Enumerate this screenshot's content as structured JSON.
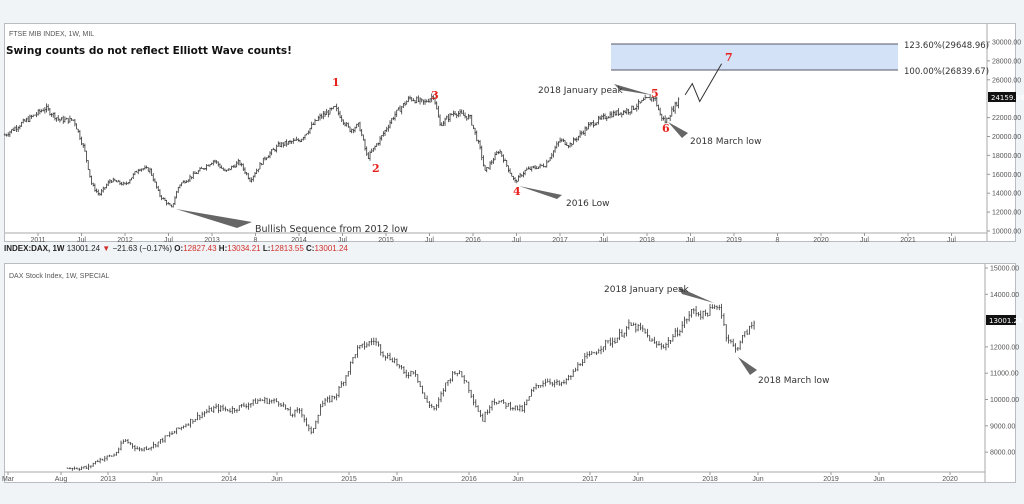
{
  "top_chart": {
    "title": "FTSE MIB INDEX, 1W, MIL",
    "headline": "Swing counts do not reflect Elliott Wave counts!",
    "last_price": "24159.34",
    "price_ticks": [
      "30000.00",
      "28000.00",
      "26000.00",
      "22000.00",
      "20000.00",
      "18000.00",
      "16000.00",
      "14000.00",
      "12000.00",
      "10000.00"
    ],
    "date_ticks": [
      "2011",
      "Jul",
      "2012",
      "Jul",
      "2013",
      "8",
      "2014",
      "Jul",
      "2015",
      "Jul",
      "2016",
      "Jul",
      "2017",
      "Jul",
      "2018",
      "Jul",
      "2019",
      "8",
      "2020",
      "Jul",
      "2021",
      "Jul"
    ],
    "fib_labels": [
      "123.60%(29648.96)",
      "100.00%(26839.67)"
    ],
    "fib_zone_color": "#d3e2f7",
    "wave_labels": [
      "1",
      "2",
      "3",
      "4",
      "5",
      "6",
      "7"
    ],
    "annotations": {
      "bullish": "Bullish Sequence from 2012 low",
      "jan_peak": "2018 January peak",
      "march_low": "2018 March low",
      "low_2016": "2016 Low"
    }
  },
  "legend": {
    "symbol": "INDEX:DAX, 1W",
    "price": "13001.24",
    "change": "−21.63 (−0.17%)",
    "o_label": "O:",
    "o": "12827.43",
    "h_label": "H:",
    "h": "13034.21",
    "l_label": "L:",
    "l": "12813.55",
    "c_label": "C:",
    "c": "13001.24",
    "down_icon": "triangle-down-icon",
    "value_color": "#d0302b"
  },
  "bottom_chart": {
    "title": "DAX Stock Index, 1W, SPECIAL",
    "last_price": "13001.24",
    "price_ticks": [
      "15000.00",
      "14000.00",
      "12000.00",
      "11000.00",
      "10000.00",
      "9000.00",
      "8000.00"
    ],
    "date_ticks": [
      "Mar",
      "Aug",
      "2013",
      "Jun",
      "2014",
      "Jun",
      "2015",
      "Jun",
      "2016",
      "Jun",
      "2017",
      "Jun",
      "2018",
      "Jun",
      "2019",
      "Jun",
      "2020"
    ],
    "annotations": {
      "jan_peak": "2018 January peak",
      "march_low": "2018 March low"
    }
  },
  "chart_data": [
    {
      "type": "ohlc-bar",
      "title": "FTSE MIB INDEX, 1W, MIL",
      "ylim": [
        10000,
        30000
      ],
      "fib_levels": [
        {
          "label": "123.60%",
          "value": 29648.96
        },
        {
          "label": "100.00%",
          "value": 26839.67
        }
      ],
      "path": [
        [
          "2010-08-15",
          20160
        ],
        [
          "2010-10-15",
          21220
        ],
        [
          "2011-02-01",
          23020
        ],
        [
          "2011-04-01",
          21750
        ],
        [
          "2011-06-01",
          21750
        ],
        [
          "2011-07-15",
          18570
        ],
        [
          "2011-08-15",
          14870
        ],
        [
          "2011-09-15",
          13810
        ],
        [
          "2011-11-01",
          15400
        ],
        [
          "2012-01-01",
          14870
        ],
        [
          "2012-03-01",
          16670
        ],
        [
          "2012-04-15",
          16450
        ],
        [
          "2012-05-25",
          13810
        ],
        [
          "2012-07-15",
          12430
        ],
        [
          "2012-08-15",
          14870
        ],
        [
          "2012-10-15",
          15930
        ],
        [
          "2013-01-10",
          17510
        ],
        [
          "2013-02-25",
          16240
        ],
        [
          "2013-04-25",
          17300
        ],
        [
          "2013-06-10",
          15400
        ],
        [
          "2013-08-10",
          17720
        ],
        [
          "2013-10-10",
          19100
        ],
        [
          "2014-01-05",
          19630
        ],
        [
          "2014-03-25",
          21960
        ],
        [
          "2014-06-01",
          23020
        ],
        [
          "2014-08-01",
          20690
        ],
        [
          "2014-09-10",
          21220
        ],
        [
          "2014-10-15",
          17720
        ],
        [
          "2014-12-05",
          19630
        ],
        [
          "2015-02-05",
          22280
        ],
        [
          "2015-04-10",
          24070
        ],
        [
          "2015-06-10",
          23540
        ],
        [
          "2015-07-20",
          24390
        ],
        [
          "2015-08-15",
          21220
        ],
        [
          "2015-10-15",
          22590
        ],
        [
          "2015-12-20",
          21960
        ],
        [
          "2016-02-01",
          18570
        ],
        [
          "2016-02-20",
          16240
        ],
        [
          "2016-04-20",
          18570
        ],
        [
          "2016-06-25",
          15190
        ],
        [
          "2016-08-10",
          16450
        ],
        [
          "2016-10-30",
          16980
        ],
        [
          "2017-01-01",
          19630
        ],
        [
          "2017-02-10",
          19100
        ],
        [
          "2017-05-05",
          21220
        ],
        [
          "2017-07-25",
          22280
        ],
        [
          "2017-10-20",
          22800
        ],
        [
          "2017-12-25",
          23860
        ],
        [
          "2018-02-01",
          24180
        ],
        [
          "2018-02-25",
          22280
        ],
        [
          "2018-03-20",
          21530
        ],
        [
          "2018-04-05",
          22280
        ],
        [
          "2018-05-20",
          24160
        ]
      ],
      "projection": [
        [
          "2018-06-10",
          24400
        ],
        [
          "2018-07-10",
          25600
        ],
        [
          "2018-08-10",
          23700
        ],
        [
          "2018-11-10",
          27700
        ]
      ]
    },
    {
      "type": "ohlc-bar",
      "title": "DAX Stock Index, 1W, SPECIAL",
      "ylim": [
        7500,
        15000
      ],
      "path": [
        [
          "2012-09-01",
          7400
        ],
        [
          "2012-11-01",
          7400
        ],
        [
          "2012-12-01",
          7700
        ],
        [
          "2013-01-20",
          7890
        ],
        [
          "2013-02-20",
          8460
        ],
        [
          "2013-04-05",
          8080
        ],
        [
          "2013-05-20",
          8270
        ],
        [
          "2013-07-05",
          8650
        ],
        [
          "2013-08-20",
          9030
        ],
        [
          "2013-10-05",
          9410
        ],
        [
          "2013-11-20",
          9680
        ],
        [
          "2014-01-05",
          9600
        ],
        [
          "2014-02-20",
          9790
        ],
        [
          "2014-04-05",
          9980
        ],
        [
          "2014-06-05",
          9900
        ],
        [
          "2014-07-05",
          9410
        ],
        [
          "2014-08-05",
          9600
        ],
        [
          "2014-09-05",
          8650
        ],
        [
          "2014-10-05",
          9790
        ],
        [
          "2014-11-20",
          10170
        ],
        [
          "2014-12-20",
          10930
        ],
        [
          "2015-01-20",
          11880
        ],
        [
          "2015-03-15",
          12260
        ],
        [
          "2015-04-15",
          11690
        ],
        [
          "2015-05-15",
          11500
        ],
        [
          "2015-06-15",
          10930
        ],
        [
          "2015-07-15",
          11120
        ],
        [
          "2015-08-15",
          9980
        ],
        [
          "2015-09-15",
          9600
        ],
        [
          "2015-10-15",
          10550
        ],
        [
          "2015-11-15",
          11120
        ],
        [
          "2015-12-15",
          10740
        ],
        [
          "2016-01-15",
          9790
        ],
        [
          "2016-02-05",
          9220
        ],
        [
          "2016-03-05",
          9980
        ],
        [
          "2016-04-20",
          9790
        ],
        [
          "2016-06-05",
          9600
        ],
        [
          "2016-07-05",
          10360
        ],
        [
          "2016-08-15",
          10740
        ],
        [
          "2016-10-01",
          10550
        ],
        [
          "2016-11-01",
          10930
        ],
        [
          "2016-12-01",
          11500
        ],
        [
          "2017-01-01",
          11690
        ],
        [
          "2017-02-01",
          12070
        ],
        [
          "2017-03-10",
          12260
        ],
        [
          "2017-04-25",
          12830
        ],
        [
          "2017-06-01",
          12640
        ],
        [
          "2017-07-10",
          12070
        ],
        [
          "2017-08-10",
          12070
        ],
        [
          "2017-09-20",
          12640
        ],
        [
          "2017-11-01",
          13400
        ],
        [
          "2017-12-01",
          13210
        ],
        [
          "2018-01-20",
          13590
        ],
        [
          "2018-02-10",
          12450
        ],
        [
          "2018-03-10",
          11880
        ],
        [
          "2018-03-25",
          12260
        ],
        [
          "2018-05-10",
          13000
        ]
      ]
    }
  ]
}
